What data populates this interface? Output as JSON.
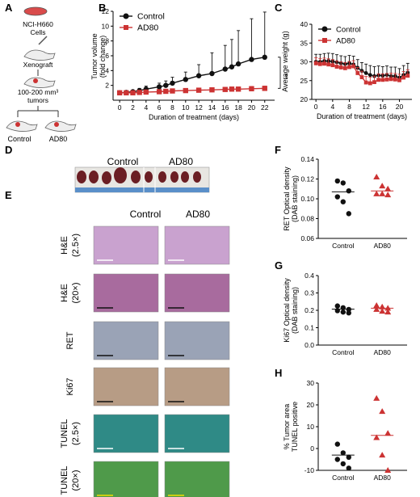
{
  "panels": {
    "A": "A",
    "B": "B",
    "C": "C",
    "D": "D",
    "E": "E",
    "F": "F",
    "G": "G",
    "H": "H"
  },
  "schematic": {
    "cells_line1": "NCI-H660",
    "cells_line2": "Cells",
    "xenograft": "Xenograft",
    "tumors_line1": "100-200 mm³",
    "tumors_line2": "tumors",
    "control": "Control",
    "ad80": "AD80"
  },
  "photo": {
    "control": "Control",
    "ad80": "AD80"
  },
  "histology": {
    "control": "Control",
    "ad80": "AD80",
    "rows": [
      {
        "line1": "H&E",
        "line2": "(2.5×)"
      },
      {
        "line1": "H&E",
        "line2": "(20×)"
      },
      {
        "line1": "RET",
        "line2": ""
      },
      {
        "line1": "Ki67",
        "line2": ""
      },
      {
        "line1": "TUNEL",
        "line2": "(2.5×)"
      },
      {
        "line1": "TUNEL",
        "line2": "(20×)"
      }
    ],
    "colors": [
      "#c9a2cf",
      "#a86b9e",
      "#9aa3b6",
      "#b79c85",
      "#2f8a86",
      "#4f9a4a"
    ]
  },
  "colors": {
    "control": "#111111",
    "ad80": "#cc3333"
  },
  "chart_data": [
    {
      "id": "B",
      "type": "line",
      "xlabel": "Duration of treatment (days)",
      "ylabel_line1": "Tumor volume",
      "ylabel_line2": "(fold change)",
      "xlim": [
        -1,
        23.5
      ],
      "ylim": [
        0,
        12
      ],
      "xticks": [
        0,
        2,
        4,
        6,
        8,
        10,
        12,
        14,
        16,
        18,
        20,
        22
      ],
      "yticks": [
        2,
        4,
        6,
        8,
        10,
        12
      ],
      "significance": "**",
      "series": [
        {
          "name": "Control",
          "x": [
            0,
            1,
            2,
            3,
            4,
            6,
            7,
            8,
            10,
            12,
            14,
            16,
            17,
            18,
            20,
            22
          ],
          "y": [
            1,
            1.05,
            1.15,
            1.3,
            1.5,
            1.8,
            2.0,
            2.3,
            2.8,
            3.3,
            3.6,
            4.2,
            4.5,
            4.9,
            5.5,
            5.8
          ],
          "err": [
            0,
            0.1,
            0.2,
            0.3,
            0.4,
            0.5,
            0.6,
            0.8,
            1.0,
            1.5,
            2.8,
            3.2,
            3.7,
            4.5,
            5.5,
            6.1
          ]
        },
        {
          "name": "AD80",
          "x": [
            0,
            1,
            2,
            3,
            4,
            6,
            7,
            8,
            10,
            12,
            14,
            16,
            17,
            18,
            20,
            22
          ],
          "y": [
            1,
            1.0,
            1.0,
            1.05,
            1.1,
            1.15,
            1.2,
            1.25,
            1.3,
            1.35,
            1.4,
            1.45,
            1.5,
            1.5,
            1.55,
            1.6
          ],
          "err": [
            0,
            0.05,
            0.05,
            0.08,
            0.1,
            0.12,
            0.12,
            0.15,
            0.15,
            0.18,
            0.2,
            0.2,
            0.22,
            0.25,
            0.3,
            0.3
          ]
        }
      ]
    },
    {
      "id": "C",
      "type": "line",
      "xlabel": "Duration of treatment (days)",
      "ylabel": "Average weight (g)",
      "xlim": [
        -1,
        23
      ],
      "ylim": [
        20,
        40
      ],
      "xticks": [
        0,
        4,
        8,
        12,
        16,
        20
      ],
      "yticks": [
        20,
        25,
        30,
        35,
        40
      ],
      "series": [
        {
          "name": "Control",
          "x": [
            0,
            1,
            2,
            3,
            4,
            5,
            6,
            7,
            8,
            9,
            10,
            11,
            12,
            13,
            14,
            15,
            16,
            17,
            18,
            19,
            20,
            21,
            22
          ],
          "y": [
            30,
            30,
            30.2,
            30.2,
            30.1,
            29.9,
            29.6,
            29.4,
            29.6,
            29.3,
            28.4,
            27.6,
            27,
            26.5,
            26.2,
            26.4,
            26.3,
            26.5,
            26.2,
            26.2,
            25.8,
            26.5,
            27.1
          ],
          "err": [
            2.0,
            2.0,
            2.0,
            2.1,
            2.1,
            2.0,
            2.0,
            2.0,
            2.1,
            2.2,
            2.2,
            2.2,
            2.4,
            2.5,
            2.5,
            2.5,
            2.4,
            2.4,
            2.4,
            2.4,
            2.4,
            2.5,
            2.5
          ]
        },
        {
          "name": "AD80",
          "x": [
            0,
            1,
            2,
            3,
            4,
            5,
            6,
            7,
            8,
            9,
            10,
            11,
            12,
            13,
            14,
            15,
            16,
            17,
            18,
            19,
            20,
            21,
            22
          ],
          "y": [
            29.6,
            29.4,
            29.5,
            29.3,
            29.1,
            28.7,
            28.5,
            28.3,
            28.6,
            28.8,
            27,
            25.9,
            24.5,
            24.3,
            24.6,
            25.2,
            25.2,
            25.3,
            25.4,
            25.3,
            25.1,
            25.8,
            26.3
          ],
          "err": [
            1.5,
            1.5,
            1.5,
            1.5,
            1.5,
            1.5,
            1.5,
            1.5,
            1.5,
            1.5,
            1.5,
            1.6,
            1.6,
            1.6,
            1.6,
            1.6,
            1.6,
            1.6,
            1.6,
            1.6,
            1.6,
            1.6,
            1.6
          ]
        }
      ]
    },
    {
      "id": "F",
      "type": "scatter",
      "ylabel_line1": "RET Optical density",
      "ylabel_line2": "(DAB staining)",
      "categories": [
        "Control",
        "AD80"
      ],
      "ylim": [
        0.06,
        0.14
      ],
      "yticks": [
        0.06,
        0.08,
        0.1,
        0.12,
        0.14
      ],
      "yticklabels": [
        "0.06",
        "0.08",
        "0.10",
        "0.12",
        "0.14"
      ],
      "series": [
        {
          "name": "Control",
          "values": [
            0.118,
            0.116,
            0.108,
            0.102,
            0.097,
            0.085
          ],
          "median": 0.107
        },
        {
          "name": "AD80",
          "values": [
            0.122,
            0.113,
            0.11,
            0.105,
            0.105,
            0.104
          ],
          "median": 0.108
        }
      ]
    },
    {
      "id": "G",
      "type": "scatter",
      "ylabel_line1": "Ki67 Optical density",
      "ylabel_line2": "(DAB staining)",
      "categories": [
        "Control",
        "AD80"
      ],
      "ylim": [
        0,
        0.4
      ],
      "yticks": [
        0,
        0.1,
        0.2,
        0.3,
        0.4
      ],
      "yticklabels": [
        "0.0",
        "0.1",
        "0.2",
        "0.3",
        "0.4"
      ],
      "series": [
        {
          "name": "Control",
          "values": [
            0.225,
            0.215,
            0.205,
            0.198,
            0.19,
            0.185
          ],
          "median": 0.207
        },
        {
          "name": "AD80",
          "values": [
            0.228,
            0.22,
            0.212,
            0.205,
            0.195,
            0.19
          ],
          "median": 0.212
        }
      ]
    },
    {
      "id": "H",
      "type": "scatter",
      "ylabel_line1": "% Tumor area",
      "ylabel_line2": "TUNEL positive",
      "categories": [
        "Control",
        "AD80"
      ],
      "ylim": [
        -10,
        30
      ],
      "yticks": [
        -10,
        0,
        10,
        20,
        30
      ],
      "yticklabels": [
        "-10",
        "0",
        "10",
        "20",
        "30"
      ],
      "series": [
        {
          "name": "Control",
          "values": [
            2,
            -2,
            -4,
            -5,
            -7,
            -9
          ],
          "median": -3
        },
        {
          "name": "AD80",
          "values": [
            23,
            17,
            7,
            5,
            -3,
            -10
          ],
          "median": 6
        }
      ]
    }
  ]
}
